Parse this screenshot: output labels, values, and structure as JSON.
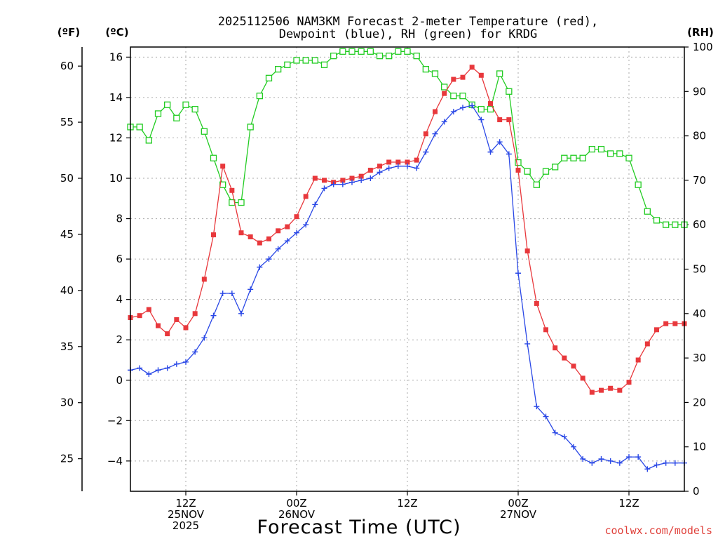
{
  "chart_data": {
    "type": "line",
    "title_line1": "2025112506 NAM3KM Forecast 2-meter Temperature (red),",
    "title_line2": "Dewpoint (blue), RH (green) for KRDG",
    "xlabel": "Forecast Time (UTC)",
    "credit": "coolwx.com/models",
    "units": {
      "fahrenheit": "(ºF)",
      "celsius": "(ºC)",
      "rh": "(RH)"
    },
    "x_hours": [
      0,
      1,
      2,
      3,
      4,
      5,
      6,
      7,
      8,
      9,
      10,
      11,
      12,
      13,
      14,
      15,
      16,
      17,
      18,
      19,
      20,
      21,
      22,
      23,
      24,
      25,
      26,
      27,
      28,
      29,
      30,
      31,
      32,
      33,
      34,
      35,
      36,
      37,
      38,
      39,
      40,
      41,
      42,
      43,
      44,
      45,
      46,
      47,
      48,
      49,
      50,
      51,
      52,
      53,
      54,
      55,
      56,
      57,
      58,
      59,
      60
    ],
    "xlim": [
      0,
      60
    ],
    "x_ticks": [
      {
        "hour": 6,
        "lines": [
          "12Z",
          "25NOV",
          "2025"
        ]
      },
      {
        "hour": 18,
        "lines": [
          "00Z",
          "26NOV"
        ]
      },
      {
        "hour": 30,
        "lines": [
          "12Z"
        ]
      },
      {
        "hour": 42,
        "lines": [
          "00Z",
          "27NOV"
        ]
      },
      {
        "hour": 54,
        "lines": [
          "12Z"
        ]
      }
    ],
    "axes": {
      "celsius": {
        "range": [
          -5.5,
          16.5
        ],
        "ticks": [
          "-4",
          "-2",
          "0",
          "2",
          "4",
          "6",
          "8",
          "10",
          "12",
          "14",
          "16"
        ]
      },
      "fahrenheit": {
        "ticks": [
          "25",
          "30",
          "35",
          "40",
          "45",
          "50",
          "55",
          "60"
        ]
      },
      "rh": {
        "range": [
          0,
          100
        ],
        "ticks": [
          "0",
          "10",
          "20",
          "30",
          "40",
          "50",
          "60",
          "70",
          "80",
          "90",
          "100"
        ]
      }
    },
    "series": [
      {
        "name": "Temperature",
        "units": "C",
        "color": "#e8383c",
        "marker": "filled-square",
        "values": [
          3.1,
          3.2,
          3.5,
          2.7,
          2.3,
          3.0,
          2.6,
          3.3,
          5.0,
          7.2,
          10.6,
          9.4,
          7.3,
          7.1,
          6.8,
          7.0,
          7.4,
          7.6,
          8.1,
          9.1,
          10.0,
          9.9,
          9.8,
          9.9,
          10.0,
          10.1,
          10.4,
          10.6,
          10.8,
          10.8,
          10.8,
          10.9,
          12.2,
          13.3,
          14.2,
          14.9,
          15.0,
          15.5,
          15.1,
          13.7,
          12.9,
          12.9,
          10.4,
          6.4,
          3.8,
          2.5,
          1.6,
          1.1,
          0.7,
          0.1,
          -0.6,
          -0.5,
          -0.4,
          -0.5,
          -0.1,
          1.0,
          1.8,
          2.5,
          2.8,
          2.8,
          2.8
        ]
      },
      {
        "name": "Dewpoint",
        "units": "C",
        "color": "#2a48e6",
        "marker": "plus",
        "values": [
          0.5,
          0.6,
          0.3,
          0.5,
          0.6,
          0.8,
          0.9,
          1.4,
          2.1,
          3.2,
          4.3,
          4.3,
          3.3,
          4.5,
          5.6,
          6.0,
          6.5,
          6.9,
          7.3,
          7.7,
          8.7,
          9.5,
          9.7,
          9.7,
          9.8,
          9.9,
          10.0,
          10.3,
          10.5,
          10.6,
          10.6,
          10.5,
          11.3,
          12.2,
          12.8,
          13.3,
          13.5,
          13.6,
          12.9,
          11.3,
          11.8,
          11.2,
          5.3,
          1.8,
          -1.3,
          -1.8,
          -2.6,
          -2.8,
          -3.3,
          -3.9,
          -4.1,
          -3.9,
          -4.0,
          -4.1,
          -3.8,
          -3.8,
          -4.4,
          -4.2,
          -4.1,
          -4.1,
          -4.1
        ]
      },
      {
        "name": "RH",
        "units": "%",
        "color": "#22cc22",
        "marker": "open-square",
        "values": [
          82,
          82,
          79,
          85,
          87,
          84,
          87,
          86,
          81,
          75,
          69,
          65,
          65,
          82,
          89,
          93,
          95,
          96,
          97,
          97,
          97,
          96,
          98,
          99,
          99,
          99,
          99,
          98,
          98,
          99,
          99,
          98,
          95,
          94,
          91,
          89,
          89,
          87,
          86,
          86,
          94,
          90,
          74,
          72,
          69,
          72,
          73,
          75,
          75,
          75,
          77,
          77,
          76,
          76,
          75,
          69,
          63,
          61,
          60,
          60,
          60
        ]
      }
    ]
  }
}
